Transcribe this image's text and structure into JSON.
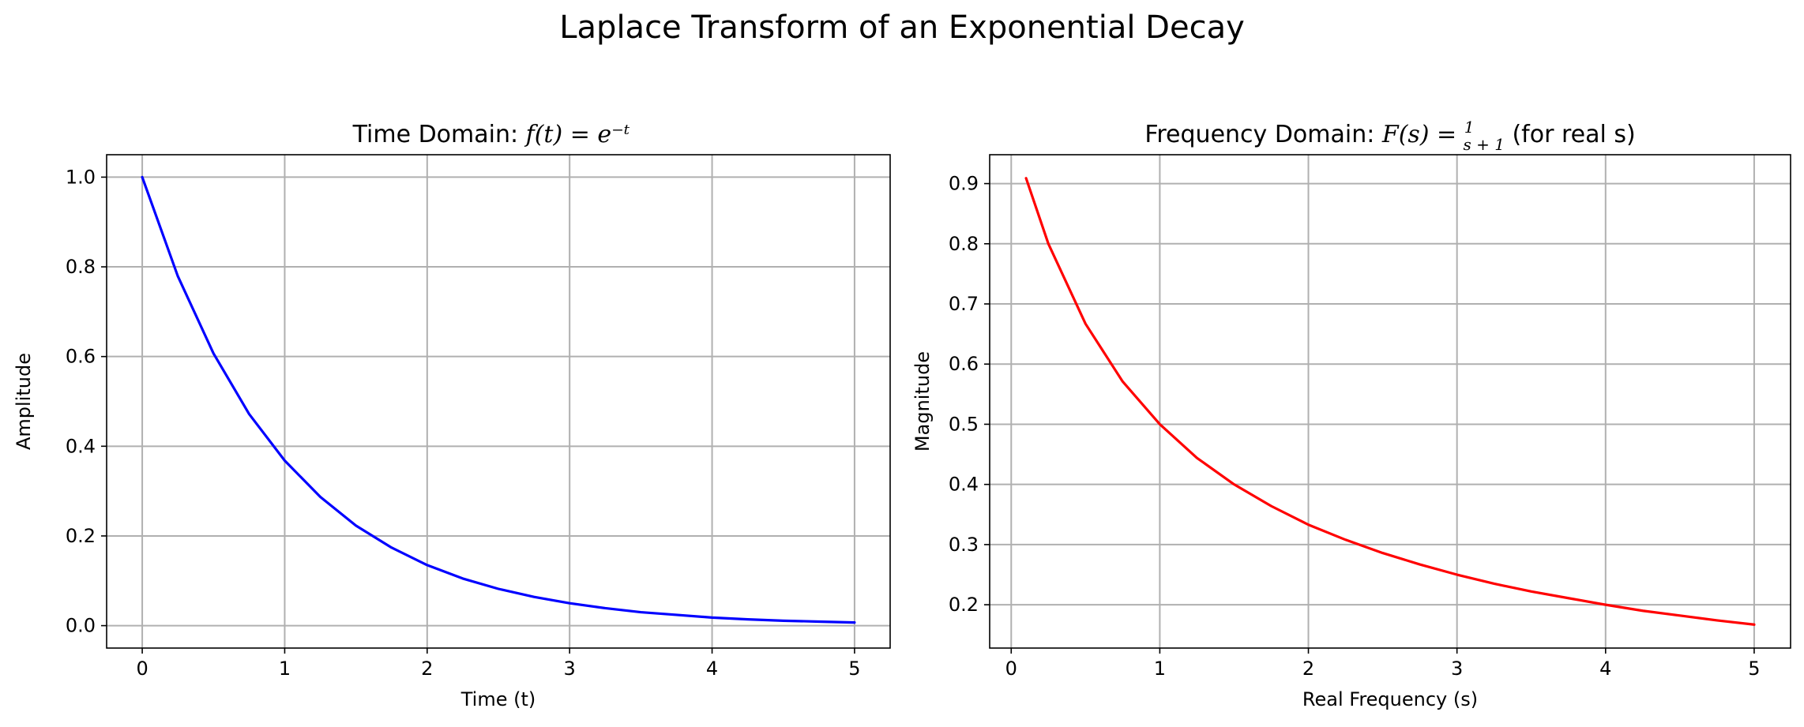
{
  "figure": {
    "suptitle": "Laplace Transform of an Exponential Decay"
  },
  "chart_data": [
    {
      "type": "line",
      "title_text": "Time Domain: ",
      "title_math": "f(t) = e⁻ᵗ",
      "xlabel": "Time (t)",
      "ylabel": "Amplitude",
      "xlim": [
        -0.25,
        5.25
      ],
      "ylim": [
        -0.05,
        1.05
      ],
      "xticks": [
        0,
        1,
        2,
        3,
        4,
        5
      ],
      "xtick_labels": [
        "0",
        "1",
        "2",
        "3",
        "4",
        "5"
      ],
      "yticks": [
        0.0,
        0.2,
        0.4,
        0.6,
        0.8,
        1.0
      ],
      "ytick_labels": [
        "0.0",
        "0.2",
        "0.4",
        "0.6",
        "0.8",
        "1.0"
      ],
      "grid": true,
      "series": [
        {
          "color": "#0000ff",
          "x": [
            0,
            0.25,
            0.5,
            0.75,
            1,
            1.25,
            1.5,
            1.75,
            2,
            2.25,
            2.5,
            2.75,
            3,
            3.25,
            3.5,
            3.75,
            4,
            4.25,
            4.5,
            4.75,
            5
          ],
          "y": [
            1.0,
            0.779,
            0.607,
            0.472,
            0.368,
            0.287,
            0.223,
            0.174,
            0.135,
            0.105,
            0.082,
            0.064,
            0.05,
            0.039,
            0.03,
            0.024,
            0.018,
            0.014,
            0.011,
            0.009,
            0.007
          ]
        }
      ]
    },
    {
      "type": "line",
      "title_text": "Frequency Domain: ",
      "title_math_prefix": "F(s) = ",
      "title_frac_num": "1",
      "title_frac_den": "s + 1",
      "title_suffix": " (for real s)",
      "xlabel": "Real Frequency (s)",
      "ylabel": "Magnitude",
      "xlim": [
        -0.145,
        5.245
      ],
      "ylim": [
        0.128,
        0.948
      ],
      "xticks": [
        0,
        1,
        2,
        3,
        4,
        5
      ],
      "xtick_labels": [
        "0",
        "1",
        "2",
        "3",
        "4",
        "5"
      ],
      "yticks": [
        0.2,
        0.3,
        0.4,
        0.5,
        0.6,
        0.7,
        0.8,
        0.9
      ],
      "ytick_labels": [
        "0.2",
        "0.3",
        "0.4",
        "0.5",
        "0.6",
        "0.7",
        "0.8",
        "0.9"
      ],
      "grid": true,
      "series": [
        {
          "color": "#ff0000",
          "x": [
            0.1,
            0.25,
            0.5,
            0.75,
            1,
            1.25,
            1.5,
            1.75,
            2,
            2.25,
            2.5,
            2.75,
            3,
            3.25,
            3.5,
            3.75,
            4,
            4.25,
            4.5,
            4.75,
            5
          ],
          "y": [
            0.909,
            0.8,
            0.667,
            0.571,
            0.5,
            0.444,
            0.4,
            0.364,
            0.333,
            0.308,
            0.286,
            0.267,
            0.25,
            0.235,
            0.222,
            0.211,
            0.2,
            0.19,
            0.182,
            0.174,
            0.167
          ]
        }
      ]
    }
  ]
}
